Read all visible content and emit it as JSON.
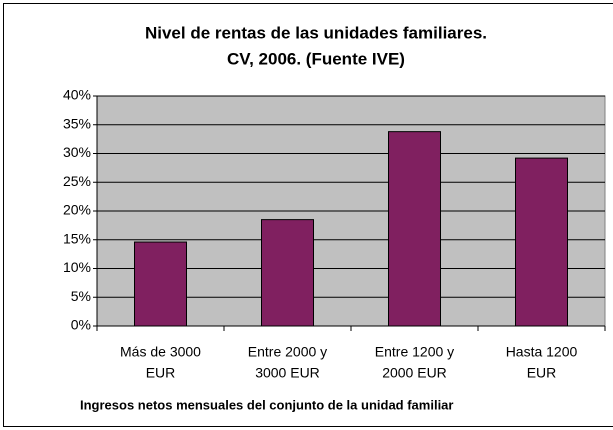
{
  "chart_data": {
    "type": "bar",
    "title": [
      "Nivel de rentas de las unidades familiares.",
      "CV, 2006. (Fuente IVE)"
    ],
    "x_label": "Ingresos netos mensuales del conjunto de la unidad familiar",
    "categories": [
      [
        "Más de 3000",
        "EUR"
      ],
      [
        "Entre 2000 y",
        "3000 EUR"
      ],
      [
        "Entre 1200 y",
        "2000 EUR"
      ],
      [
        "Hasta 1200",
        "EUR"
      ]
    ],
    "values": [
      14.6,
      18.5,
      33.8,
      29.2
    ],
    "color": "#802060",
    "ylim": [
      0,
      40
    ],
    "yticks": [
      {
        "value": 0,
        "label": "0%"
      },
      {
        "value": 5,
        "label": "5%"
      },
      {
        "value": 10,
        "label": "10%"
      },
      {
        "value": 15,
        "label": "15%"
      },
      {
        "value": 20,
        "label": "20%"
      },
      {
        "value": 25,
        "label": "25%"
      },
      {
        "value": 30,
        "label": "30%"
      },
      {
        "value": 35,
        "label": "35%"
      },
      {
        "value": 40,
        "label": "40%"
      }
    ],
    "grid": true
  }
}
